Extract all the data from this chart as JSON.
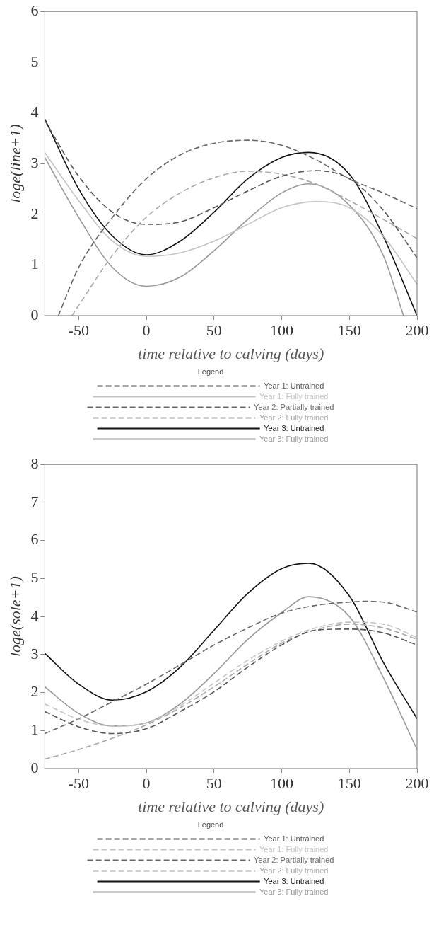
{
  "chart_data": [
    {
      "type": "line",
      "xlabel": "time relative to calving (days)",
      "ylabel": "loge(line+1)",
      "legend_title": "Legend",
      "legend": "bottom",
      "grid": false,
      "marker": "none",
      "xlim": [
        -75,
        200
      ],
      "xticks": [
        -50,
        0,
        50,
        100,
        150,
        200
      ],
      "ylim": [
        0,
        6
      ],
      "yticks": [
        0,
        1,
        2,
        3,
        4,
        5,
        6
      ],
      "series": [
        {
          "name": "Year 1: Untrained",
          "color": "#555555",
          "line_style": "dashed",
          "x": [
            -75,
            -50,
            -25,
            0,
            25,
            50,
            75,
            100,
            125,
            150,
            175,
            200
          ],
          "values": [
            3.85,
            2.75,
            2.04,
            1.8,
            1.85,
            2.13,
            2.46,
            2.75,
            2.86,
            2.7,
            2.08,
            1.14
          ]
        },
        {
          "name": "Year 1: Fully trained",
          "color": "#c4c4c4",
          "line_style": "solid",
          "x": [
            -75,
            -50,
            -25,
            0,
            25,
            50,
            75,
            100,
            125,
            150,
            175,
            200
          ],
          "values": [
            3.22,
            2.27,
            1.47,
            1.17,
            1.24,
            1.47,
            1.8,
            2.13,
            2.25,
            2.13,
            1.57,
            0.62
          ]
        },
        {
          "name": "Year 2: Partially trained",
          "color": "#666666",
          "line_style": "dashed",
          "x": [
            -65,
            -50,
            -25,
            0,
            25,
            50,
            75,
            100,
            125,
            150,
            175,
            200
          ],
          "values": [
            0,
            0.95,
            1.94,
            2.7,
            3.17,
            3.4,
            3.46,
            3.36,
            3.08,
            2.7,
            2.42,
            2.11
          ]
        },
        {
          "name": "Year 2: Fully trained",
          "color": "#a8a8a8",
          "line_style": "dashed",
          "x": [
            -55,
            -50,
            -25,
            0,
            25,
            50,
            75,
            100,
            125,
            150,
            175,
            200
          ],
          "values": [
            0,
            0.2,
            1.19,
            1.94,
            2.42,
            2.72,
            2.85,
            2.79,
            2.6,
            2.27,
            1.9,
            1.52
          ]
        },
        {
          "name": "Year 3: Untrained",
          "color": "#111111",
          "line_style": "solid",
          "x": [
            -75,
            -50,
            -25,
            0,
            25,
            50,
            75,
            100,
            120,
            150,
            175,
            200
          ],
          "values": [
            3.88,
            2.5,
            1.57,
            1.2,
            1.47,
            2.04,
            2.7,
            3.12,
            3.22,
            2.79,
            1.57,
            0
          ]
        },
        {
          "name": "Year 3: Fully trained",
          "color": "#999999",
          "line_style": "solid",
          "x": [
            -75,
            -50,
            -25,
            0,
            25,
            50,
            75,
            100,
            120,
            150,
            175,
            190
          ],
          "values": [
            3.12,
            1.94,
            0.95,
            0.58,
            0.76,
            1.28,
            1.9,
            2.42,
            2.6,
            2.18,
            1.19,
            0
          ]
        }
      ]
    },
    {
      "type": "line",
      "xlabel": "time relative to calving (days)",
      "ylabel": "loge(sole+1)",
      "legend_title": "Legend",
      "legend": "bottom",
      "grid": false,
      "marker": "none",
      "xlim": [
        -75,
        200
      ],
      "xticks": [
        -50,
        0,
        50,
        100,
        150,
        200
      ],
      "ylim": [
        0,
        8
      ],
      "yticks": [
        0,
        1,
        2,
        3,
        4,
        5,
        6,
        7,
        8
      ],
      "series": [
        {
          "name": "Year 1: Untrained",
          "color": "#555555",
          "line_style": "dashed",
          "x": [
            -75,
            -50,
            -25,
            0,
            25,
            50,
            75,
            100,
            125,
            150,
            175,
            200
          ],
          "values": [
            1.5,
            1.1,
            0.92,
            1.05,
            1.5,
            2.02,
            2.67,
            3.25,
            3.64,
            3.67,
            3.57,
            3.25
          ]
        },
        {
          "name": "Year 1: Fully trained",
          "color": "#c4c4c4",
          "line_style": "dashed",
          "x": [
            -75,
            -50,
            -25,
            0,
            25,
            50,
            75,
            100,
            125,
            150,
            175,
            200
          ],
          "values": [
            1.7,
            1.3,
            1.12,
            1.2,
            1.65,
            2.25,
            2.85,
            3.35,
            3.7,
            3.85,
            3.8,
            3.45
          ]
        },
        {
          "name": "Year 2: Partially trained",
          "color": "#666666",
          "line_style": "dashed",
          "x": [
            -75,
            -50,
            -25,
            0,
            25,
            50,
            75,
            100,
            125,
            150,
            160,
            175,
            200
          ],
          "values": [
            0.92,
            1.31,
            1.76,
            2.22,
            2.73,
            3.25,
            3.7,
            4.09,
            4.29,
            4.38,
            4.4,
            4.38,
            4.12
          ]
        },
        {
          "name": "Year 2: Fully trained",
          "color": "#a8a8a8",
          "line_style": "dashed",
          "x": [
            -75,
            -50,
            -25,
            0,
            25,
            50,
            75,
            100,
            125,
            150,
            175,
            200
          ],
          "values": [
            0.25,
            0.5,
            0.8,
            1.15,
            1.6,
            2.15,
            2.75,
            3.3,
            3.65,
            3.8,
            3.7,
            3.4
          ]
        },
        {
          "name": "Year 3: Untrained",
          "color": "#111111",
          "line_style": "solid",
          "x": [
            -75,
            -50,
            -25,
            0,
            25,
            50,
            75,
            100,
            120,
            150,
            175,
            200
          ],
          "values": [
            3.03,
            2.22,
            1.8,
            2.02,
            2.67,
            3.64,
            4.61,
            5.26,
            5.4,
            4.54,
            2.8,
            1.31
          ]
        },
        {
          "name": "Year 3: Fully trained",
          "color": "#999999",
          "line_style": "solid",
          "x": [
            -75,
            -50,
            -25,
            0,
            25,
            50,
            75,
            100,
            120,
            150,
            175,
            200
          ],
          "values": [
            2.15,
            1.45,
            1.12,
            1.2,
            1.7,
            2.5,
            3.4,
            4.1,
            4.52,
            4.0,
            2.4,
            0.5
          ]
        }
      ]
    }
  ]
}
